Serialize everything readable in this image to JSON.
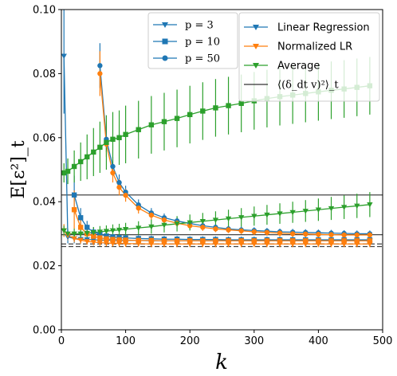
{
  "chart_data": {
    "type": "line",
    "xlabel": "k",
    "ylabel": "E[ε²]_t",
    "xlim": [
      0,
      500
    ],
    "ylim": [
      0,
      0.1
    ],
    "xticks": [
      0,
      100,
      200,
      300,
      400,
      500
    ],
    "xtick_labels": [
      "0",
      "100",
      "200",
      "300",
      "400",
      "500"
    ],
    "yticks": [
      0.0,
      0.02,
      0.04,
      0.06,
      0.08,
      0.1
    ],
    "ytick_labels": [
      "0.00",
      "0.02",
      "0.04",
      "0.06",
      "0.08",
      "0.10"
    ],
    "grid": false,
    "legend_marker": {
      "placement": "top-center",
      "entries": [
        {
          "label": "p = 3",
          "marker": "triangle-down"
        },
        {
          "label": "p = 10",
          "marker": "square"
        },
        {
          "label": "p = 50",
          "marker": "circle"
        }
      ]
    },
    "legend_method": {
      "placement": "top-right",
      "entries": [
        {
          "label": "Linear Regression",
          "color": "#1f77b4"
        },
        {
          "label": "Normalized LR",
          "color": "#ff7f0e"
        },
        {
          "label": "Average",
          "color": "#2ca02c"
        },
        {
          "label": "⟨(δ_dt v)²⟩_t",
          "color": "#333333"
        }
      ]
    },
    "reference_lines": [
      {
        "y": 0.0421,
        "color": "#444444",
        "style": "solid"
      },
      {
        "y": 0.0297,
        "color": "#444444",
        "style": "solid"
      },
      {
        "y": 0.0268,
        "color": "#444444",
        "style": "dashed"
      },
      {
        "y": 0.026,
        "color": "#444444",
        "style": "dashed"
      }
    ],
    "series": [
      {
        "method": "Linear Regression",
        "p": 3,
        "marker": "triangle-down",
        "color": "#1f77b4",
        "x": [
          4,
          10,
          20,
          30,
          40,
          50,
          60,
          70,
          80,
          90,
          100,
          120,
          140,
          160,
          180,
          200,
          220,
          240,
          260,
          280,
          300,
          320,
          340,
          360,
          380,
          400,
          420,
          440,
          460,
          480
        ],
        "y": [
          0.0855,
          0.029,
          0.0285,
          0.0283,
          0.0282,
          0.0281,
          0.028,
          0.028,
          0.028,
          0.0279,
          0.0279,
          0.0279,
          0.0278,
          0.0278,
          0.0278,
          0.0278,
          0.0278,
          0.0278,
          0.0278,
          0.0278,
          0.0278,
          0.0278,
          0.0278,
          0.0278,
          0.0278,
          0.0278,
          0.0278,
          0.0278,
          0.0278,
          0.0278
        ],
        "err": [
          0.018,
          0.002,
          0.0015,
          0.0012,
          0.0011,
          0.001,
          0.001,
          0.001,
          0.001,
          0.001,
          0.001,
          0.001,
          0.001,
          0.001,
          0.001,
          0.001,
          0.001,
          0.001,
          0.001,
          0.001,
          0.001,
          0.001,
          0.001,
          0.001,
          0.001,
          0.001,
          0.001,
          0.001,
          0.001,
          0.001
        ]
      },
      {
        "method": "Linear Regression",
        "p": 10,
        "marker": "square",
        "color": "#1f77b4",
        "x": [
          20,
          30,
          40,
          50,
          60,
          70,
          80,
          90,
          100,
          120,
          140,
          160,
          180,
          200,
          220,
          240,
          260,
          280,
          300,
          320,
          340,
          360,
          380,
          400,
          420,
          440,
          460,
          480
        ],
        "y": [
          0.0421,
          0.035,
          0.032,
          0.0305,
          0.0298,
          0.0293,
          0.029,
          0.0288,
          0.0287,
          0.0285,
          0.0284,
          0.0283,
          0.0283,
          0.0282,
          0.0282,
          0.0282,
          0.0281,
          0.0281,
          0.0281,
          0.0281,
          0.0281,
          0.0281,
          0.0281,
          0.0281,
          0.0281,
          0.0281,
          0.0281,
          0.0281
        ],
        "err": [
          0.006,
          0.003,
          0.002,
          0.0015,
          0.0013,
          0.0012,
          0.0011,
          0.0011,
          0.001,
          0.001,
          0.001,
          0.001,
          0.001,
          0.001,
          0.001,
          0.001,
          0.001,
          0.001,
          0.001,
          0.001,
          0.001,
          0.001,
          0.001,
          0.001,
          0.001,
          0.001,
          0.001,
          0.001
        ]
      },
      {
        "method": "Linear Regression",
        "p": 50,
        "marker": "circle",
        "color": "#1f77b4",
        "x": [
          60,
          70,
          80,
          90,
          100,
          120,
          140,
          160,
          180,
          200,
          220,
          240,
          260,
          280,
          300,
          320,
          340,
          360,
          380,
          400,
          420,
          440,
          460,
          480
        ],
        "y": [
          0.0825,
          0.0595,
          0.051,
          0.046,
          0.043,
          0.039,
          0.0365,
          0.035,
          0.034,
          0.0332,
          0.0325,
          0.032,
          0.0315,
          0.0312,
          0.031,
          0.0308,
          0.0306,
          0.0305,
          0.0304,
          0.0303,
          0.0302,
          0.0301,
          0.03,
          0.03
        ],
        "err": [
          0.007,
          0.004,
          0.003,
          0.0025,
          0.002,
          0.0017,
          0.0015,
          0.0013,
          0.0012,
          0.0011,
          0.0011,
          0.001,
          0.001,
          0.001,
          0.001,
          0.001,
          0.001,
          0.001,
          0.001,
          0.001,
          0.001,
          0.001,
          0.001,
          0.001
        ]
      },
      {
        "method": "Normalized LR",
        "p": 3,
        "marker": "triangle-down",
        "color": "#ff7f0e",
        "x": [
          4,
          10,
          20,
          30,
          40,
          50,
          60,
          70,
          80,
          90,
          100,
          120,
          140,
          160,
          180,
          200,
          220,
          240,
          260,
          280,
          300,
          320,
          340,
          360,
          380,
          400,
          420,
          440,
          460,
          480
        ],
        "y": [
          0.031,
          0.0295,
          0.0285,
          0.028,
          0.0276,
          0.0274,
          0.0272,
          0.0271,
          0.027,
          0.027,
          0.0269,
          0.0269,
          0.0268,
          0.0268,
          0.0268,
          0.0268,
          0.0268,
          0.0268,
          0.0268,
          0.0268,
          0.0268,
          0.0268,
          0.0268,
          0.0268,
          0.0268,
          0.0268,
          0.0268,
          0.0268,
          0.0268,
          0.0268
        ],
        "err": [
          0.002,
          0.0015,
          0.0012,
          0.0011,
          0.001,
          0.001,
          0.001,
          0.001,
          0.001,
          0.001,
          0.001,
          0.001,
          0.001,
          0.001,
          0.001,
          0.001,
          0.001,
          0.001,
          0.001,
          0.001,
          0.001,
          0.001,
          0.001,
          0.001,
          0.001,
          0.001,
          0.001,
          0.001,
          0.001,
          0.001
        ]
      },
      {
        "method": "Normalized LR",
        "p": 10,
        "marker": "square",
        "color": "#ff7f0e",
        "x": [
          20,
          30,
          40,
          50,
          60,
          70,
          80,
          90,
          100,
          120,
          140,
          160,
          180,
          200,
          220,
          240,
          260,
          280,
          300,
          320,
          340,
          360,
          380,
          400,
          420,
          440,
          460,
          480
        ],
        "y": [
          0.0375,
          0.032,
          0.03,
          0.0292,
          0.0287,
          0.0284,
          0.0282,
          0.0281,
          0.028,
          0.0279,
          0.0279,
          0.0278,
          0.0278,
          0.0278,
          0.0278,
          0.0278,
          0.0278,
          0.0278,
          0.0278,
          0.0278,
          0.0278,
          0.0278,
          0.0278,
          0.0278,
          0.0278,
          0.0278,
          0.0278,
          0.0278
        ],
        "err": [
          0.006,
          0.003,
          0.002,
          0.0015,
          0.0013,
          0.0012,
          0.0011,
          0.0011,
          0.001,
          0.001,
          0.001,
          0.001,
          0.001,
          0.001,
          0.001,
          0.001,
          0.001,
          0.001,
          0.001,
          0.001,
          0.001,
          0.001,
          0.001,
          0.001,
          0.001,
          0.001,
          0.001,
          0.001
        ]
      },
      {
        "method": "Normalized LR",
        "p": 50,
        "marker": "circle",
        "color": "#ff7f0e",
        "x": [
          60,
          70,
          80,
          90,
          100,
          120,
          140,
          160,
          180,
          200,
          220,
          240,
          260,
          280,
          300,
          320,
          340,
          360,
          380,
          400,
          420,
          440,
          460,
          480
        ],
        "y": [
          0.08,
          0.058,
          0.049,
          0.0445,
          0.042,
          0.038,
          0.0358,
          0.0343,
          0.0333,
          0.0325,
          0.032,
          0.0315,
          0.0312,
          0.0309,
          0.0306,
          0.0304,
          0.0302,
          0.03,
          0.0299,
          0.0298,
          0.0297,
          0.0296,
          0.0296,
          0.0296
        ],
        "err": [
          0.007,
          0.004,
          0.003,
          0.0025,
          0.002,
          0.0017,
          0.0015,
          0.0013,
          0.0012,
          0.0011,
          0.0011,
          0.001,
          0.001,
          0.001,
          0.001,
          0.001,
          0.001,
          0.001,
          0.001,
          0.001,
          0.001,
          0.001,
          0.001,
          0.001
        ]
      },
      {
        "method": "Average",
        "p": 3,
        "marker": "triangle-down",
        "color": "#2ca02c",
        "x": [
          4,
          10,
          20,
          30,
          40,
          50,
          60,
          70,
          80,
          90,
          100,
          120,
          140,
          160,
          180,
          200,
          220,
          240,
          260,
          280,
          300,
          320,
          340,
          360,
          380,
          400,
          420,
          440,
          460,
          480
        ],
        "y": [
          0.031,
          0.03,
          0.03,
          0.03,
          0.0302,
          0.0304,
          0.0306,
          0.0308,
          0.031,
          0.0312,
          0.0314,
          0.0318,
          0.0322,
          0.0327,
          0.0331,
          0.0335,
          0.0339,
          0.0343,
          0.0347,
          0.0351,
          0.0355,
          0.0359,
          0.0363,
          0.0367,
          0.0371,
          0.0375,
          0.0379,
          0.0383,
          0.0387,
          0.0391
        ],
        "err": [
          0.0015,
          0.0015,
          0.0016,
          0.0016,
          0.0017,
          0.0017,
          0.0018,
          0.0018,
          0.0019,
          0.0019,
          0.002,
          0.0021,
          0.0022,
          0.0023,
          0.0024,
          0.0025,
          0.0026,
          0.0027,
          0.0028,
          0.0029,
          0.003,
          0.0031,
          0.0032,
          0.0033,
          0.0034,
          0.0035,
          0.0036,
          0.0037,
          0.0038,
          0.0039
        ]
      },
      {
        "method": "Average",
        "p": 10,
        "marker": "square",
        "color": "#2ca02c",
        "x": [
          4,
          10,
          20,
          30,
          40,
          50,
          60,
          70,
          80,
          90,
          100,
          120,
          140,
          160,
          180,
          200,
          220,
          240,
          260,
          280,
          300,
          320,
          340,
          360,
          380,
          400,
          420,
          440,
          460,
          480
        ],
        "y": [
          0.049,
          0.0495,
          0.051,
          0.0525,
          0.054,
          0.0555,
          0.057,
          0.0585,
          0.0595,
          0.06,
          0.061,
          0.0625,
          0.064,
          0.065,
          0.066,
          0.0672,
          0.0683,
          0.0693,
          0.07,
          0.0707,
          0.0715,
          0.0722,
          0.0728,
          0.0733,
          0.0738,
          0.0743,
          0.0748,
          0.0752,
          0.0757,
          0.0762
        ],
        "err": [
          0.003,
          0.004,
          0.005,
          0.006,
          0.007,
          0.0075,
          0.008,
          0.0085,
          0.0085,
          0.0085,
          0.009,
          0.009,
          0.009,
          0.009,
          0.009,
          0.009,
          0.009,
          0.009,
          0.009,
          0.009,
          0.009,
          0.009,
          0.009,
          0.009,
          0.009,
          0.009,
          0.009,
          0.009,
          0.009,
          0.009
        ]
      }
    ]
  }
}
